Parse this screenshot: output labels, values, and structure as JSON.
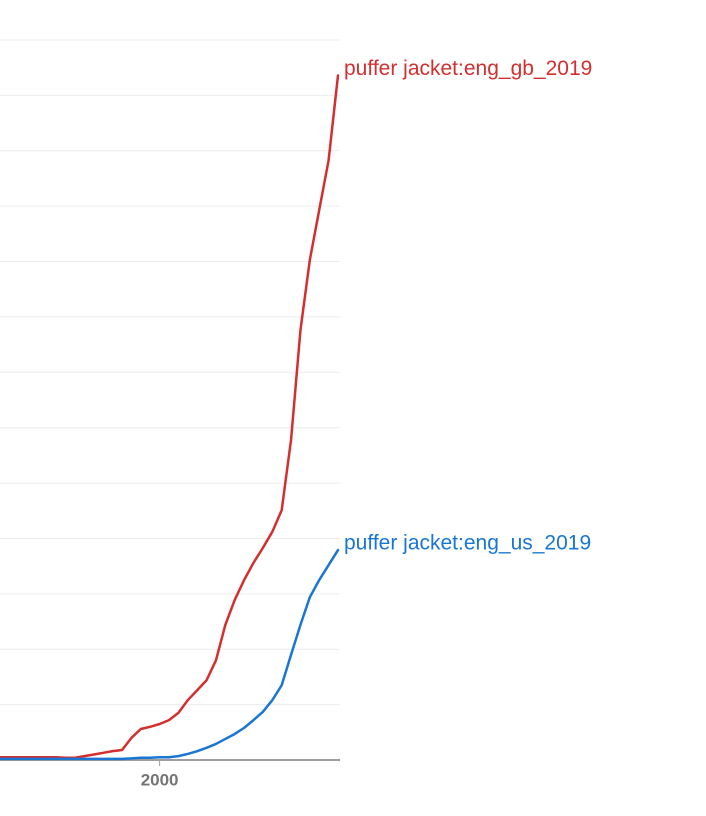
{
  "chart_data": {
    "type": "line",
    "x": [
      1983,
      1984,
      1985,
      1986,
      1987,
      1988,
      1989,
      1990,
      1991,
      1992,
      1993,
      1994,
      1995,
      1996,
      1997,
      1998,
      1999,
      2000,
      2001,
      2002,
      2003,
      2004,
      2005,
      2006,
      2007,
      2008,
      2009,
      2010,
      2011,
      2012,
      2013,
      2014,
      2015,
      2016,
      2017,
      2018,
      2019
    ],
    "series": [
      {
        "name": "puffer jacket:eng_gb_2019",
        "color": "#d32f2f",
        "values": [
          0.05,
          0.05,
          0.05,
          0.05,
          0.05,
          0.05,
          0.05,
          0.04,
          0.04,
          0.07,
          0.1,
          0.13,
          0.16,
          0.18,
          0.4,
          0.56,
          0.6,
          0.65,
          0.72,
          0.85,
          1.08,
          1.26,
          1.44,
          1.8,
          2.44,
          2.89,
          3.25,
          3.56,
          3.83,
          4.12,
          4.51,
          5.78,
          7.76,
          9.03,
          9.93,
          10.83,
          12.36
        ]
      },
      {
        "name": "puffer jacket:eng_us_2019",
        "color": "#1976d2",
        "values": [
          0.02,
          0.02,
          0.02,
          0.02,
          0.02,
          0.02,
          0.02,
          0.02,
          0.02,
          0.02,
          0.02,
          0.02,
          0.02,
          0.02,
          0.03,
          0.04,
          0.04,
          0.05,
          0.05,
          0.07,
          0.11,
          0.16,
          0.22,
          0.29,
          0.38,
          0.47,
          0.58,
          0.72,
          0.87,
          1.08,
          1.35,
          1.9,
          2.44,
          2.94,
          3.25,
          3.52,
          3.79
        ]
      }
    ],
    "xlim": [
      1983,
      2019
    ],
    "xticks": [
      2000
    ],
    "ylim": [
      0,
      13
    ],
    "ygrid": [
      1,
      2,
      3,
      4,
      5,
      6,
      7,
      8,
      9,
      10,
      11,
      12,
      13
    ]
  }
}
